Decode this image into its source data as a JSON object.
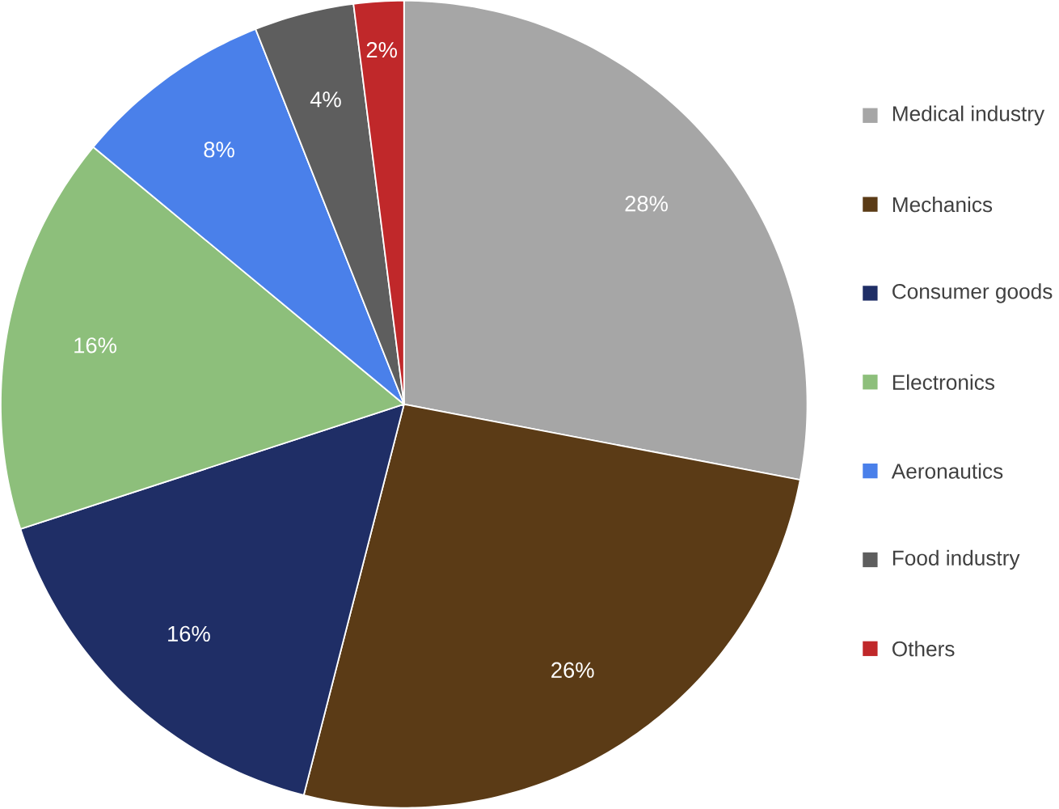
{
  "chart_data": {
    "type": "pie",
    "categories": [
      "Medical industry",
      "Mechanics",
      "Consumer goods",
      "Electronics",
      "Aeronautics",
      "Food industry",
      "Others"
    ],
    "values": [
      28,
      26,
      16,
      16,
      8,
      4,
      2
    ],
    "colors": [
      "#a6a6a6",
      "#5b3b16",
      "#1f2e66",
      "#8dbf7b",
      "#4a80ea",
      "#5e5e5e",
      "#c0282a"
    ],
    "value_labels": [
      "28%",
      "26%",
      "16%",
      "16%",
      "8%",
      "4%",
      "2%"
    ],
    "legend": "right"
  }
}
